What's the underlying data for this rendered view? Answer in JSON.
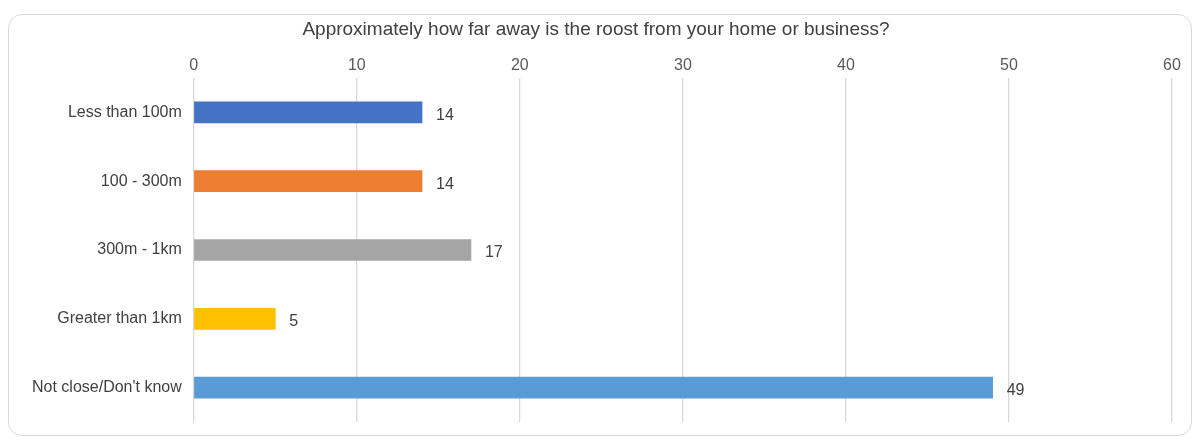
{
  "chart_data": {
    "type": "bar",
    "orientation": "horizontal",
    "title": "Approximately how far away is the roost from your home or business?",
    "categories": [
      "Less than 100m",
      "100 - 300m",
      "300m - 1km",
      "Greater than 1km",
      "Not close/Don't know"
    ],
    "values": [
      14,
      14,
      17,
      5,
      49
    ],
    "colors": [
      "#4472c4",
      "#ed7d31",
      "#a5a5a5",
      "#ffc000",
      "#5b9bd5"
    ],
    "xlim": [
      0,
      60
    ],
    "xticks": [
      0,
      10,
      20,
      30,
      40,
      50,
      60
    ],
    "grid": "x",
    "data_labels": true,
    "legend": false
  }
}
